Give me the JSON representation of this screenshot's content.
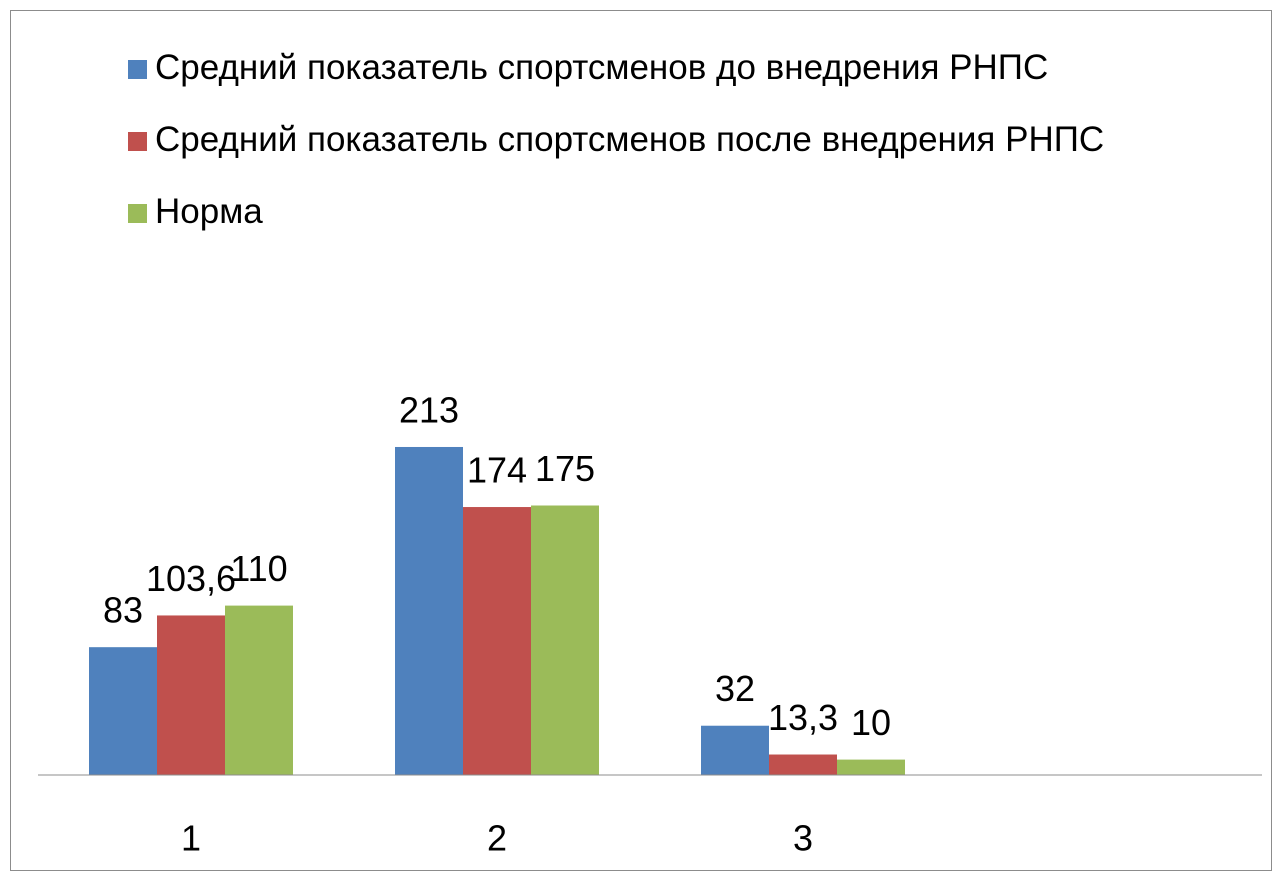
{
  "chart_data": {
    "type": "bar",
    "categories": [
      "1",
      "2",
      "3",
      null
    ],
    "series": [
      {
        "name": "Средний показатель спортсменов до внедрения РНПС",
        "color": "#4f81bd",
        "values": [
          83,
          213,
          32,
          null
        ]
      },
      {
        "name": "Средний показатель спортсменов после внедрения РНПС",
        "color": "#c0504d",
        "values": [
          103.6,
          174,
          13.3,
          null
        ],
        "value_labels": [
          "103,6",
          "174",
          "13,3",
          null
        ]
      },
      {
        "name": "Норма",
        "color": "#9bbb59",
        "values": [
          110,
          175,
          10,
          null
        ]
      }
    ],
    "ylim": [
      0,
      250
    ],
    "legend": "top"
  }
}
